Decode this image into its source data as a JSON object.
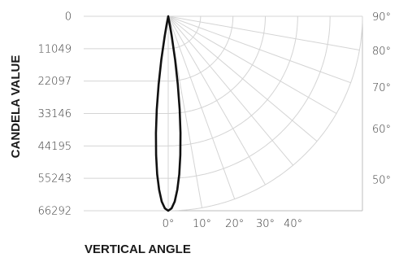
{
  "chart_data": {
    "type": "polar",
    "title": "",
    "ylabel": "CANDELA VALUE",
    "xlabel": "VERTICAL ANGLE",
    "candela_ticks": [
      "0",
      "11049",
      "22097",
      "33146",
      "44195",
      "55243",
      "66292"
    ],
    "candela_max": 66292,
    "bottom_angle_ticks": [
      "0°",
      "10°",
      "20°",
      "30°",
      "40°"
    ],
    "right_angle_ticks": [
      "90°",
      "80°",
      "70°",
      "60°",
      "50°"
    ],
    "radial_line_angles": [
      0,
      10,
      20,
      30,
      40,
      50,
      60,
      70,
      80,
      90
    ],
    "series": [
      {
        "angles_deg": [
          0,
          1,
          2,
          3,
          4,
          5,
          6,
          7,
          8,
          9,
          10,
          10.5,
          11
        ],
        "candela": [
          66292,
          65500,
          63200,
          59200,
          54000,
          47500,
          40000,
          32000,
          23500,
          15000,
          7000,
          3000,
          0
        ]
      }
    ]
  }
}
